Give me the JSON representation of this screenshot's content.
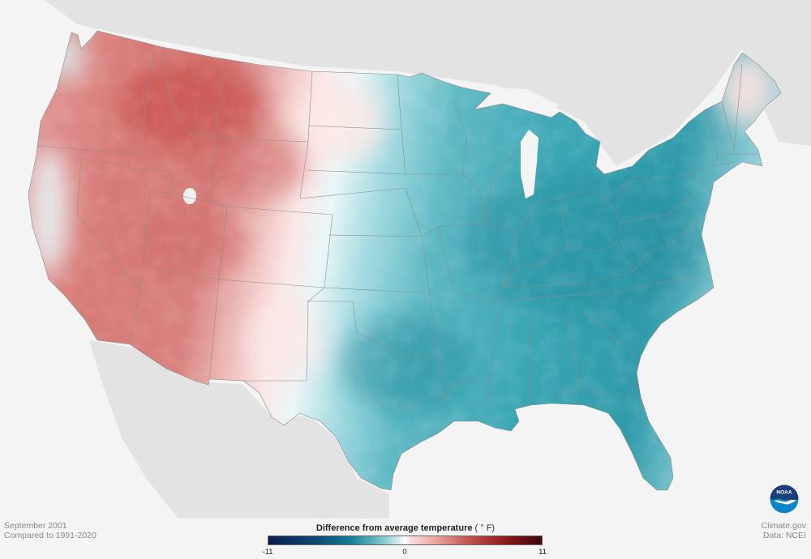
{
  "map": {
    "period_line": "September 2001",
    "baseline_line": "Compared to 1991-2020",
    "credit_site": "Climate.gov",
    "credit_data": "Data: NCEI"
  },
  "legend": {
    "title": "Difference from average temperature",
    "unit": "( ° F)",
    "min_label": "-11",
    "mid_label": "0",
    "max_label": "11",
    "range": [
      -11,
      11
    ],
    "colors": {
      "cold_extreme": "#0a1d4a",
      "cold": "#127f92",
      "neutral": "#ffffff",
      "warm": "#c85b56",
      "warm_extreme": "#3f0507"
    }
  },
  "logo": {
    "text": "NOAA",
    "icon": "noaa-logo-icon",
    "colors": {
      "sky": "#1b3f7a",
      "water": "#0a85c9",
      "bird": "#ffffff"
    }
  }
}
